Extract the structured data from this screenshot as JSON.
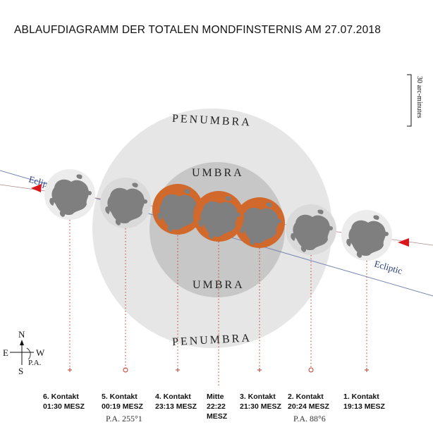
{
  "title": "ABLAUFDIAGRAMM DER TOTALEN MONDFINSTERNIS AM 27.07.2018",
  "penumbra_label": "PENUMBRA",
  "umbra_label": "UMBRA",
  "ecliptic_label_left": "Eclip",
  "ecliptic_label_right": "Ecliptic",
  "scale_label": "30 arc-minutes",
  "compass": {
    "north": "N",
    "east": "E",
    "west": "W",
    "south": "S",
    "position_angle": "P.A."
  },
  "contacts": [
    {
      "name": "6. Kontakt",
      "time": "01:30 MESZ",
      "pa": "",
      "phase": "full"
    },
    {
      "name": "5. Kontakt",
      "time": "00:19 MESZ",
      "pa": "P.A. 255°1",
      "phase": "full"
    },
    {
      "name": "4. Kontakt",
      "time": "23:13 MESZ",
      "pa": "",
      "phase": "eclipsed"
    },
    {
      "name": "Mitte",
      "time": "22:22",
      "time2": "MESZ",
      "pa": "",
      "phase": "eclipsed"
    },
    {
      "name": "3. Kontakt",
      "time": "21:30 MESZ",
      "pa": "",
      "phase": "eclipsed"
    },
    {
      "name": "2. Kontakt",
      "time": "20:24 MESZ",
      "pa": "P.A. 88°6",
      "phase": "full"
    },
    {
      "name": "1. Kontakt",
      "time": "19:13 MESZ",
      "pa": "",
      "phase": "full"
    }
  ],
  "colors": {
    "penumbra": "#e6e6e6",
    "umbra": "#c7c7c7",
    "moon_full": "#ececec",
    "moon_eclipsed": "#d0692b",
    "maria": "#7f7f7f",
    "ecliptic": "#2b3a7a",
    "arrow": "#d8161c",
    "drop_line": "#c23b2a"
  }
}
